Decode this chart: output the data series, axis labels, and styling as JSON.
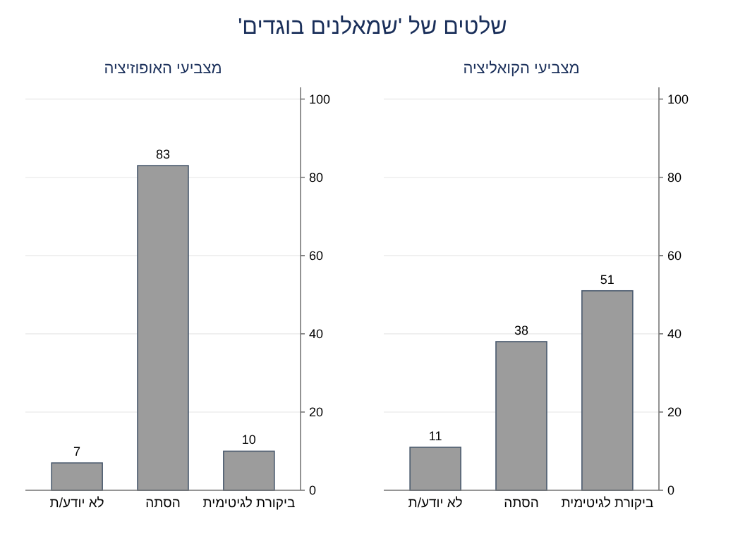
{
  "chart_data": [
    {
      "type": "other",
      "title": "שלטים של 'שמאלנים בוגדים'"
    },
    {
      "type": "bar",
      "title": "מצביעי האופוזיציה",
      "categories": [
        "לא יודע/ת",
        "הסתה",
        "ביקורת לגיטימית"
      ],
      "values": [
        7,
        83,
        10
      ],
      "color": "#9c9c9c",
      "ylim": [
        0,
        103
      ],
      "yticks": [
        0,
        20,
        40,
        60,
        80,
        100
      ],
      "grid": "y",
      "data_labels": true
    },
    {
      "type": "bar",
      "title": "מצביעי הקואליציה",
      "categories": [
        "לא יודע/ת",
        "הסתה",
        "ביקורת לגיטימית"
      ],
      "values": [
        11,
        38,
        51
      ],
      "color": "#9c9c9c",
      "ylim": [
        0,
        103
      ],
      "yticks": [
        0,
        20,
        40,
        60,
        80,
        100
      ],
      "grid": "y",
      "data_labels": true
    }
  ]
}
